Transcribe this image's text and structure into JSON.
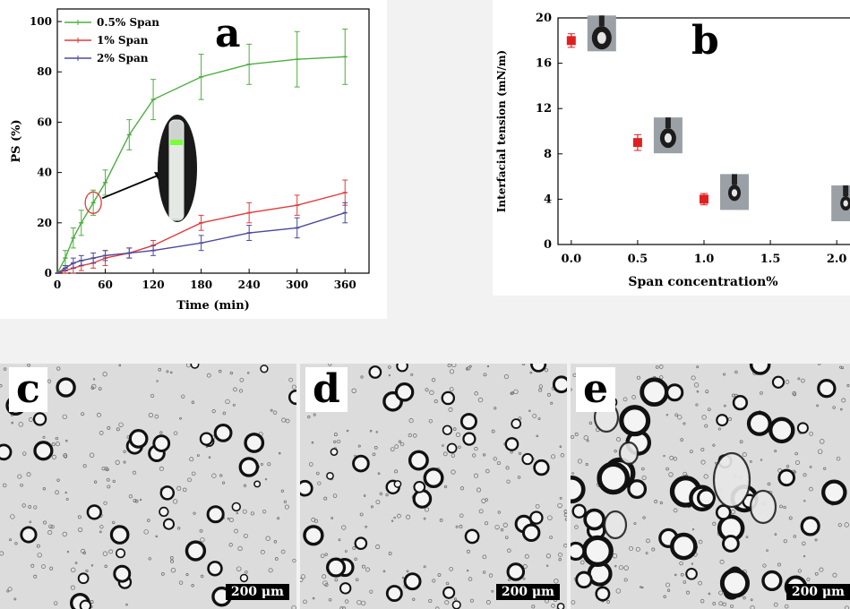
{
  "chart_data": [
    {
      "type": "line",
      "panel_label": "a",
      "xlabel": "Time (min)",
      "ylabel": "PS (%)",
      "xlim": [
        0,
        390
      ],
      "ylim": [
        0,
        105
      ],
      "x_ticks": [
        0,
        60,
        120,
        180,
        240,
        300,
        360
      ],
      "y_ticks": [
        0,
        20,
        40,
        60,
        80,
        100
      ],
      "legend_position": "top-left",
      "series": [
        {
          "name": "0.5% Span",
          "color": "#4caf3f",
          "points": [
            {
              "x": 0,
              "y": 0,
              "err": 0
            },
            {
              "x": 10,
              "y": 6,
              "err": 3
            },
            {
              "x": 20,
              "y": 14,
              "err": 4
            },
            {
              "x": 30,
              "y": 20,
              "err": 5
            },
            {
              "x": 45,
              "y": 28,
              "err": 5
            },
            {
              "x": 60,
              "y": 36,
              "err": 5
            },
            {
              "x": 90,
              "y": 55,
              "err": 6
            },
            {
              "x": 120,
              "y": 69,
              "err": 8
            },
            {
              "x": 180,
              "y": 78,
              "err": 9
            },
            {
              "x": 240,
              "y": 83,
              "err": 8
            },
            {
              "x": 300,
              "y": 85,
              "err": 11
            },
            {
              "x": 360,
              "y": 86,
              "err": 11
            }
          ]
        },
        {
          "name": "1% Span",
          "color": "#e23b3b",
          "points": [
            {
              "x": 0,
              "y": 0,
              "err": 0
            },
            {
              "x": 10,
              "y": 1,
              "err": 1
            },
            {
              "x": 20,
              "y": 2,
              "err": 2
            },
            {
              "x": 30,
              "y": 3,
              "err": 2
            },
            {
              "x": 45,
              "y": 4,
              "err": 2
            },
            {
              "x": 60,
              "y": 6,
              "err": 3
            },
            {
              "x": 90,
              "y": 8,
              "err": 2
            },
            {
              "x": 120,
              "y": 11,
              "err": 2
            },
            {
              "x": 180,
              "y": 20,
              "err": 3
            },
            {
              "x": 240,
              "y": 24,
              "err": 4
            },
            {
              "x": 300,
              "y": 27,
              "err": 4
            },
            {
              "x": 360,
              "y": 32,
              "err": 5
            }
          ]
        },
        {
          "name": "2% Span",
          "color": "#4a4a9e",
          "points": [
            {
              "x": 0,
              "y": 0,
              "err": 0
            },
            {
              "x": 10,
              "y": 2,
              "err": 1
            },
            {
              "x": 20,
              "y": 4,
              "err": 2
            },
            {
              "x": 30,
              "y": 5,
              "err": 2
            },
            {
              "x": 45,
              "y": 6,
              "err": 2
            },
            {
              "x": 60,
              "y": 7,
              "err": 2
            },
            {
              "x": 90,
              "y": 8,
              "err": 2
            },
            {
              "x": 120,
              "y": 9,
              "err": 2
            },
            {
              "x": 180,
              "y": 12,
              "err": 3
            },
            {
              "x": 240,
              "y": 16,
              "err": 3
            },
            {
              "x": 300,
              "y": 18,
              "err": 4
            },
            {
              "x": 360,
              "y": 24,
              "err": 4
            }
          ]
        }
      ],
      "annotations": [
        "circled point at 45 min with arrow to vial photo inset"
      ]
    },
    {
      "type": "scatter",
      "panel_label": "b",
      "xlabel": "Span concentration%",
      "ylabel": "Interfacial tension (mN/m)",
      "xlim": [
        -0.1,
        2.1
      ],
      "ylim": [
        0,
        20
      ],
      "x_ticks": [
        "0.0",
        "0.5",
        "1.0",
        "1.5",
        "2.0"
      ],
      "y_ticks": [
        0,
        4,
        8,
        12,
        16,
        20
      ],
      "marker_color": "#e02020",
      "points": [
        {
          "x": 0.0,
          "y": 18,
          "err": 0.6
        },
        {
          "x": 0.5,
          "y": 9,
          "err": 0.7
        },
        {
          "x": 1.0,
          "y": 4,
          "err": 0.5
        },
        {
          "x": 2.0,
          "y": 3,
          "err": 0.5
        }
      ],
      "annotations": [
        "pendant drop image insets next to each point"
      ]
    }
  ],
  "micrographs": [
    {
      "label": "c",
      "scale_bar": "200 μm",
      "seed": 11
    },
    {
      "label": "d",
      "scale_bar": "200 μm",
      "seed": 27
    },
    {
      "label": "e",
      "scale_bar": "200 μm",
      "seed": 53
    }
  ]
}
